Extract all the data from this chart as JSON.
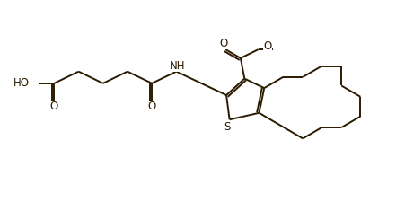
{
  "bg_color": "#ffffff",
  "line_color": "#2a1a00",
  "line_width": 1.4,
  "font_size": 8.5,
  "figsize": [
    4.41,
    2.34
  ],
  "dpi": 100,
  "xlim": [
    0,
    10
  ],
  "ylim": [
    0,
    5.3
  ]
}
